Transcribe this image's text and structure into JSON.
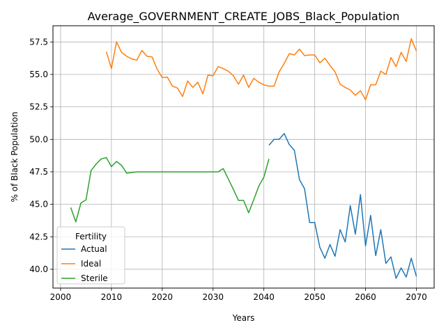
{
  "chart_data": {
    "type": "line",
    "title": "Average_GOVERNMENT_CREATE_JOBS_Black_Population",
    "xlabel": "Years",
    "ylabel": "% of Black Population",
    "xlim": [
      1998.5,
      2073.5
    ],
    "ylim": [
      38.55,
      58.75
    ],
    "xticks": [
      2000,
      2010,
      2020,
      2030,
      2040,
      2050,
      2060,
      2070
    ],
    "yticks": [
      40.0,
      42.5,
      45.0,
      47.5,
      50.0,
      52.5,
      55.0,
      57.5
    ],
    "ytick_labels": [
      "40.0",
      "42.5",
      "45.0",
      "47.5",
      "50.0",
      "52.5",
      "55.0",
      "57.5"
    ],
    "grid": true,
    "legend": {
      "title": "Fertility",
      "placement": "lower-left"
    },
    "colors": {
      "Actual": "#1f77b4",
      "Ideal": "#ff7f0e",
      "Sterile": "#2ca02c"
    },
    "series": [
      {
        "name": "Actual",
        "x": [
          2041,
          2042,
          2043,
          2044,
          2045,
          2046,
          2047,
          2048,
          2049,
          2050,
          2051,
          2052,
          2053,
          2054,
          2055,
          2056,
          2057,
          2058,
          2059,
          2060,
          2061,
          2062,
          2063,
          2064,
          2065,
          2066,
          2067,
          2068,
          2069,
          2070
        ],
        "y": [
          49.55,
          50.0,
          50.0,
          50.45,
          49.6,
          49.15,
          46.9,
          46.2,
          43.6,
          43.6,
          41.7,
          40.85,
          41.9,
          41.0,
          43.05,
          42.1,
          44.9,
          42.7,
          45.75,
          41.8,
          44.15,
          41.05,
          43.05,
          40.45,
          40.95,
          39.3,
          40.1,
          39.4,
          40.85,
          39.45
        ]
      },
      {
        "name": "Ideal",
        "x": [
          2009,
          2010,
          2011,
          2012,
          2013,
          2014,
          2015,
          2016,
          2017,
          2018,
          2019,
          2020,
          2021,
          2022,
          2023,
          2024,
          2025,
          2026,
          2027,
          2028,
          2029,
          2030,
          2031,
          2032,
          2033,
          2034,
          2035,
          2036,
          2037,
          2038,
          2039,
          2040,
          2041,
          2042,
          2043,
          2044,
          2045,
          2046,
          2047,
          2048,
          2049,
          2050,
          2051,
          2052,
          2053,
          2054,
          2055,
          2056,
          2057,
          2058,
          2059,
          2060,
          2061,
          2062,
          2063,
          2064,
          2065,
          2066,
          2067,
          2068,
          2069,
          2070
        ],
        "y": [
          56.75,
          55.45,
          57.5,
          56.7,
          56.4,
          56.2,
          56.1,
          56.85,
          56.4,
          56.35,
          55.4,
          54.75,
          54.8,
          54.1,
          53.95,
          53.3,
          54.5,
          54.0,
          54.4,
          53.5,
          54.95,
          54.9,
          55.6,
          55.45,
          55.25,
          54.9,
          54.25,
          54.95,
          54.0,
          54.7,
          54.4,
          54.2,
          54.1,
          54.1,
          55.2,
          55.85,
          56.6,
          56.5,
          56.95,
          56.45,
          56.5,
          56.5,
          55.9,
          56.25,
          55.7,
          55.2,
          54.25,
          54.0,
          53.8,
          53.4,
          53.75,
          53.05,
          54.2,
          54.2,
          55.25,
          55.0,
          56.3,
          55.6,
          56.7,
          56.0,
          57.75,
          56.8
        ]
      },
      {
        "name": "Sterile",
        "x": [
          2002,
          2003,
          2004,
          2005,
          2006,
          2007,
          2008,
          2009,
          2010,
          2011,
          2012,
          2013,
          2014,
          2015,
          2016,
          2017,
          2018,
          2019,
          2020,
          2021,
          2022,
          2023,
          2024,
          2025,
          2026,
          2027,
          2028,
          2029,
          2030,
          2031,
          2032,
          2033,
          2034,
          2035,
          2036,
          2037,
          2038,
          2039,
          2040,
          2041
        ],
        "y": [
          44.75,
          43.65,
          45.1,
          45.35,
          47.6,
          48.1,
          48.5,
          48.6,
          47.9,
          48.3,
          48.0,
          47.4,
          47.45,
          47.5,
          47.5,
          47.5,
          47.5,
          47.5,
          47.5,
          47.5,
          47.5,
          47.5,
          47.5,
          47.5,
          47.5,
          47.5,
          47.5,
          47.5,
          47.5,
          47.5,
          47.75,
          46.95,
          46.15,
          45.3,
          45.3,
          44.35,
          45.35,
          46.4,
          47.1,
          48.5
        ]
      }
    ]
  }
}
